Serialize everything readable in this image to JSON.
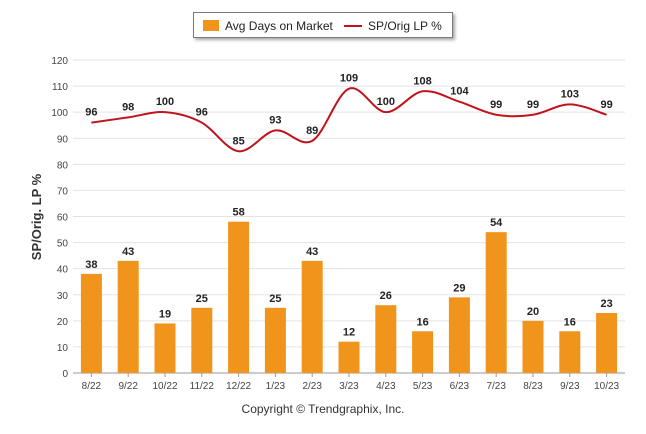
{
  "chart_data": {
    "type": "bar+line",
    "categories": [
      "8/22",
      "9/22",
      "10/22",
      "11/22",
      "12/22",
      "1/23",
      "2/23",
      "3/23",
      "4/23",
      "5/23",
      "6/23",
      "7/23",
      "8/23",
      "9/23",
      "10/23"
    ],
    "series": [
      {
        "name": "Avg Days on Market",
        "type": "bar",
        "color": "#f0941c",
        "values": [
          38,
          43,
          19,
          25,
          58,
          25,
          43,
          12,
          26,
          16,
          29,
          54,
          20,
          16,
          23
        ]
      },
      {
        "name": "SP/Orig LP %",
        "type": "line",
        "color": "#c0131c",
        "values": [
          96,
          98,
          100,
          96,
          85,
          93,
          89,
          109,
          100,
          108,
          104,
          99,
          99,
          103,
          99
        ]
      }
    ],
    "ylabel": "SP/Orig. LP %",
    "ylim": [
      0,
      120
    ],
    "yticks": [
      0,
      10,
      20,
      30,
      40,
      50,
      60,
      70,
      80,
      90,
      100,
      110,
      120
    ],
    "grid": true,
    "legend_position": "top-center"
  },
  "copyright": "Copyright © Trendgraphix, Inc."
}
